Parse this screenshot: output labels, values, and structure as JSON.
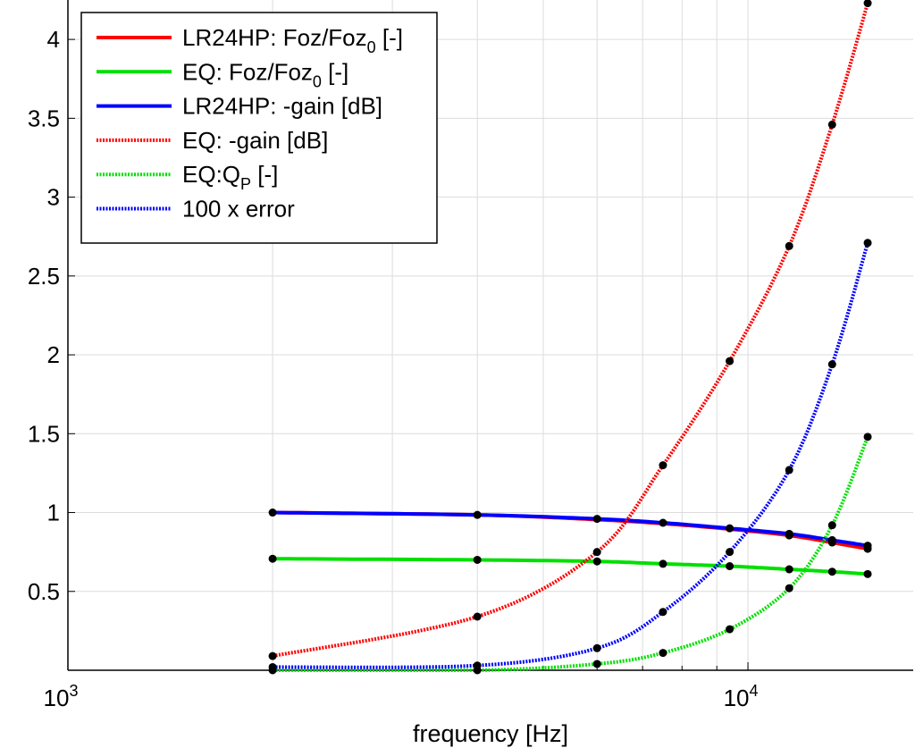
{
  "chart_data": {
    "type": "line",
    "xscale": "log",
    "xlim": [
      1000,
      17500
    ],
    "ylim": [
      0,
      4.25
    ],
    "grid": true,
    "legend_position": "top-left",
    "xlabel": "frequency [Hz]",
    "ylabel": "",
    "x_ticks": [
      {
        "value": 1000,
        "base": "10",
        "exp": "3"
      },
      {
        "value": 10000,
        "base": "10",
        "exp": "4"
      }
    ],
    "y_ticks": [
      {
        "value": 0.5,
        "label": "0.5"
      },
      {
        "value": 1,
        "label": "1"
      },
      {
        "value": 1.5,
        "label": "1.5"
      },
      {
        "value": 2,
        "label": "2"
      },
      {
        "value": 2.5,
        "label": "2.5"
      },
      {
        "value": 3,
        "label": "3"
      },
      {
        "value": 3.5,
        "label": "3.5"
      },
      {
        "value": 4,
        "label": "4"
      }
    ],
    "x": [
      2000,
      4000,
      6000,
      7500,
      9400,
      11500,
      13300,
      15000
    ],
    "series": [
      {
        "key": "lr_foz",
        "legend": {
          "main": "LR24HP: Foz/Foz",
          "sub": "0",
          "suffix": " [-]"
        },
        "color": "#ff0000",
        "style": "solid",
        "values": [
          1.0,
          0.985,
          0.955,
          0.93,
          0.895,
          0.855,
          0.81,
          0.77
        ]
      },
      {
        "key": "eq_foz",
        "legend": {
          "main": "EQ: Foz/Foz",
          "sub": "0",
          "suffix": " [-]"
        },
        "color": "#00e000",
        "style": "solid",
        "values": [
          0.707,
          0.7,
          0.69,
          0.675,
          0.66,
          0.64,
          0.625,
          0.61
        ]
      },
      {
        "key": "lr_gain",
        "legend": {
          "main": "LR24HP: -gain [dB]",
          "sub": "",
          "suffix": ""
        },
        "color": "#0000ff",
        "style": "solid",
        "values": [
          1.0,
          0.985,
          0.96,
          0.935,
          0.9,
          0.865,
          0.825,
          0.79
        ]
      },
      {
        "key": "eq_gain",
        "legend": {
          "main": "EQ: -gain [dB]",
          "sub": "",
          "suffix": ""
        },
        "color": "#ff0000",
        "style": "dotted",
        "values": [
          0.09,
          0.34,
          0.75,
          1.3,
          1.96,
          2.69,
          3.46,
          4.23
        ]
      },
      {
        "key": "eq_qp",
        "legend": {
          "main": "EQ:Q",
          "sub": "P",
          "suffix": " [-]"
        },
        "color": "#00e000",
        "style": "dotted",
        "values": [
          0.0,
          0.0,
          0.04,
          0.11,
          0.26,
          0.52,
          0.92,
          1.48
        ]
      },
      {
        "key": "error",
        "legend": {
          "main": "100 x error",
          "sub": "",
          "suffix": ""
        },
        "color": "#0000ff",
        "style": "dotted",
        "values": [
          0.02,
          0.03,
          0.14,
          0.37,
          0.75,
          1.27,
          1.94,
          2.71
        ]
      }
    ],
    "markers": {
      "color": "#000000",
      "points": [
        [
          2000,
          1.0
        ],
        [
          4000,
          0.985
        ],
        [
          6000,
          0.96
        ],
        [
          7500,
          0.935
        ],
        [
          9400,
          0.9
        ],
        [
          11500,
          0.865
        ],
        [
          13300,
          0.825
        ],
        [
          15000,
          0.79
        ],
        [
          2000,
          0.707
        ],
        [
          4000,
          0.7
        ],
        [
          6000,
          0.69
        ],
        [
          7500,
          0.675
        ],
        [
          9400,
          0.66
        ],
        [
          11500,
          0.64
        ],
        [
          13300,
          0.625
        ],
        [
          15000,
          0.61
        ],
        [
          11500,
          0.855
        ],
        [
          13300,
          0.81
        ],
        [
          15000,
          0.77
        ],
        [
          2000,
          0.09
        ],
        [
          4000,
          0.34
        ],
        [
          6000,
          0.75
        ],
        [
          7500,
          1.3
        ],
        [
          9400,
          1.96
        ],
        [
          11500,
          2.69
        ],
        [
          13300,
          3.46
        ],
        [
          15000,
          4.23
        ],
        [
          2000,
          0.0
        ],
        [
          4000,
          0.0
        ],
        [
          6000,
          0.04
        ],
        [
          7500,
          0.11
        ],
        [
          9400,
          0.26
        ],
        [
          11500,
          0.52
        ],
        [
          13300,
          0.92
        ],
        [
          15000,
          1.48
        ],
        [
          2000,
          0.02
        ],
        [
          4000,
          0.03
        ],
        [
          6000,
          0.14
        ],
        [
          7500,
          0.37
        ],
        [
          9400,
          0.75
        ],
        [
          11500,
          1.27
        ],
        [
          13300,
          1.94
        ],
        [
          15000,
          2.71
        ]
      ]
    }
  }
}
